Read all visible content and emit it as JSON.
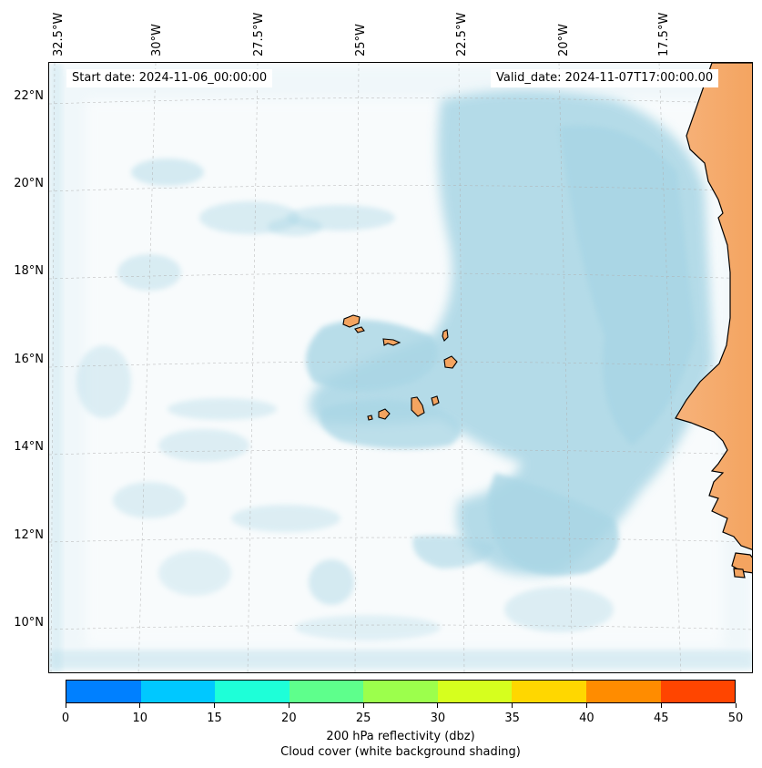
{
  "map": {
    "start_date": "Start date: 2024-11-06_00:00:00",
    "valid_date": "Valid_date: 2024-11-07T17:00:00.00",
    "lon_labels": [
      "32.5°W",
      "30°W",
      "27.5°W",
      "25°W",
      "22.5°W",
      "20°W",
      "17.5°W"
    ],
    "lat_labels": [
      "22°N",
      "20°N",
      "18°N",
      "16°N",
      "14°N",
      "12°N",
      "10°N"
    ],
    "land_color": "#f4a460",
    "cloud_color": "#a9d6e5",
    "islands": "Cape Verde",
    "coast": "West Africa (Senegal / Mauritania / Guinea-Bissau)"
  },
  "colorbar": {
    "ticks": [
      "0",
      "10",
      "15",
      "20",
      "25",
      "30",
      "35",
      "40",
      "45",
      "50"
    ],
    "colors": [
      "#0080ff",
      "#00c8ff",
      "#1effd8",
      "#5eff8c",
      "#9cff4c",
      "#d6ff1e",
      "#ffd700",
      "#ff8c00",
      "#ff4500"
    ],
    "label": "200 hPa reflectivity (dbz)",
    "sublabel": "Cloud cover (white background shading)"
  }
}
